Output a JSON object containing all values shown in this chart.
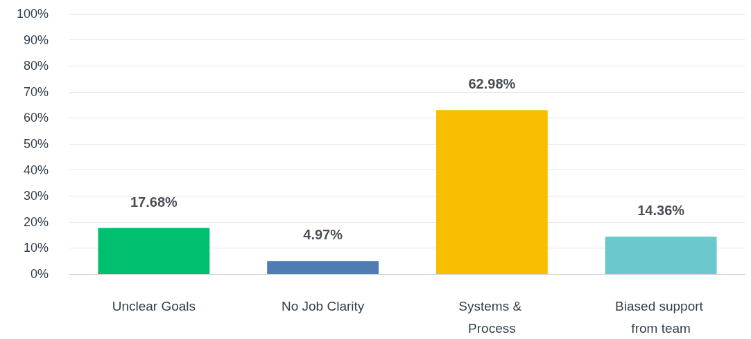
{
  "chart_data": {
    "type": "bar",
    "categories": [
      "Unclear Goals",
      "No Job Clarity",
      "Systems & Process",
      "Biased support from team"
    ],
    "values": [
      17.68,
      4.97,
      62.98,
      14.36
    ],
    "colors": [
      "#00bf6f",
      "#507cb6",
      "#f9be00",
      "#6bc8cd"
    ],
    "value_labels": [
      "17.68%",
      "4.97%",
      "62.98%",
      "14.36%"
    ],
    "ylim": [
      0,
      100
    ],
    "yticks": [
      {
        "value": 0,
        "label": "0%"
      },
      {
        "value": 10,
        "label": "10%"
      },
      {
        "value": 20,
        "label": "20%"
      },
      {
        "value": 30,
        "label": "30%"
      },
      {
        "value": 40,
        "label": "40%"
      },
      {
        "value": 50,
        "label": "50%"
      },
      {
        "value": 60,
        "label": "60%"
      },
      {
        "value": 70,
        "label": "70%"
      },
      {
        "value": 80,
        "label": "80%"
      },
      {
        "value": 90,
        "label": "90%"
      },
      {
        "value": 100,
        "label": "100%"
      }
    ],
    "grid": "y"
  }
}
